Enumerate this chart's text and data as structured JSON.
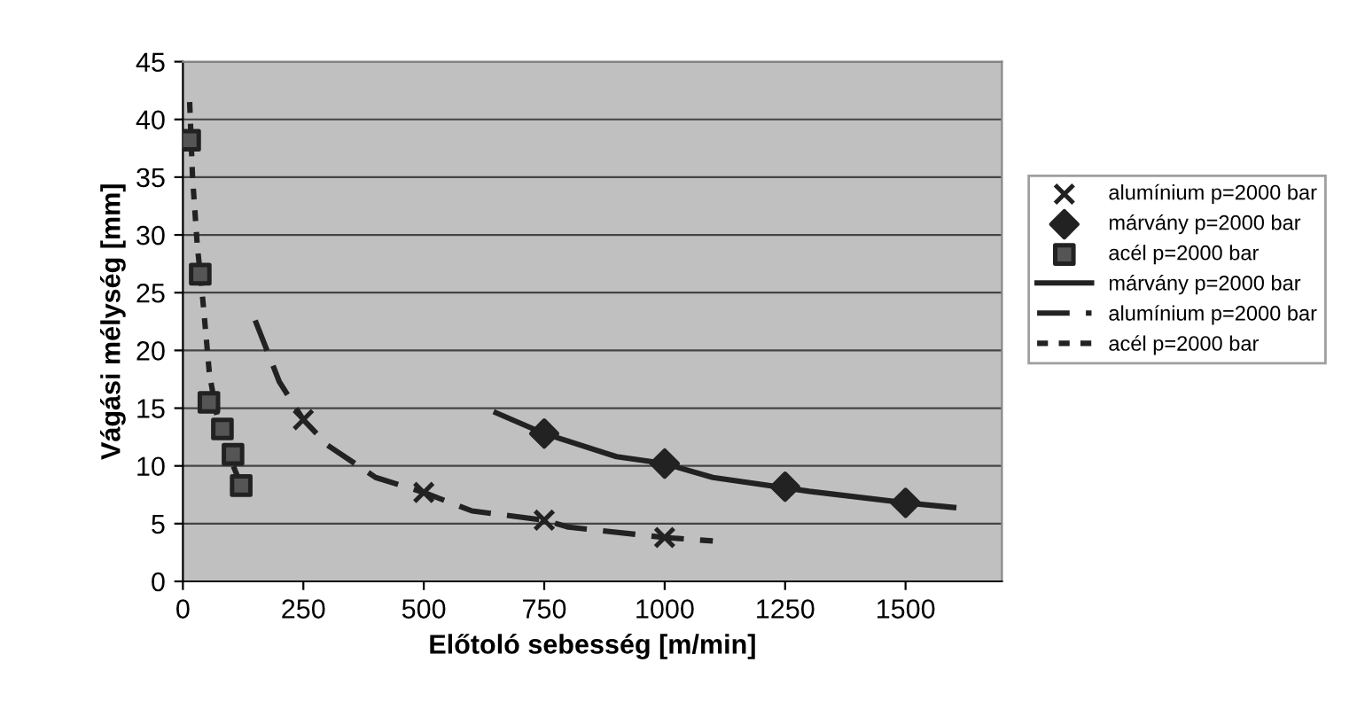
{
  "chart_data": {
    "type": "scatter",
    "xlabel": "Előtoló sebesség [m/min]",
    "ylabel": "Vágási mélység [mm]",
    "xlim": [
      0,
      1700
    ],
    "ylim": [
      0,
      45
    ],
    "xticks": [
      0,
      250,
      500,
      750,
      1000,
      1250,
      1500
    ],
    "yticks": [
      0,
      5,
      10,
      15,
      20,
      25,
      30,
      35,
      40,
      45
    ],
    "grid": "y",
    "legend": "right",
    "series": [
      {
        "name": "alumínium p=2000 bar",
        "marker": "cross",
        "color": "#222222",
        "x": [
          250,
          500,
          750,
          1000
        ],
        "values": [
          14,
          7.7,
          5.3,
          3.8
        ]
      },
      {
        "name": "márvány p=2000 bar",
        "marker": "diamond",
        "color": "#222222",
        "x": [
          750,
          1000,
          1250,
          1500
        ],
        "values": [
          12.8,
          10.2,
          8.2,
          6.8
        ]
      },
      {
        "name": "acél p=2000 bar",
        "marker": "square",
        "color": "#555555",
        "x": [
          14,
          36,
          54,
          82,
          104,
          121
        ],
        "values": [
          38.2,
          26.6,
          15.5,
          13.2,
          11,
          8.3
        ]
      },
      {
        "name": "márvány p=2000 bar",
        "type": "line",
        "line_style": "solid",
        "color": "#222222",
        "x": [
          650,
          750,
          900,
          1000,
          1100,
          1300,
          1500,
          1600
        ],
        "values": [
          14.6,
          12.8,
          10.8,
          10.2,
          9.0,
          7.8,
          6.8,
          6.4
        ]
      },
      {
        "name": "alumínium p=2000 bar",
        "type": "line",
        "line_style": "dashed",
        "color": "#222222",
        "x": [
          150,
          200,
          250,
          300,
          400,
          500,
          600,
          750,
          800,
          1000,
          1100
        ],
        "values": [
          22.6,
          17.3,
          14,
          11.8,
          9.0,
          7.7,
          6.1,
          5.3,
          4.7,
          3.8,
          3.5
        ]
      },
      {
        "name": "acél p=2000 bar",
        "type": "line",
        "line_style": "dotted",
        "color": "#222222",
        "x": [
          14,
          20,
          30,
          40,
          55,
          70,
          90,
          121
        ],
        "values": [
          41.5,
          35,
          29,
          25,
          18,
          14.5,
          11.5,
          8.3
        ]
      }
    ]
  }
}
